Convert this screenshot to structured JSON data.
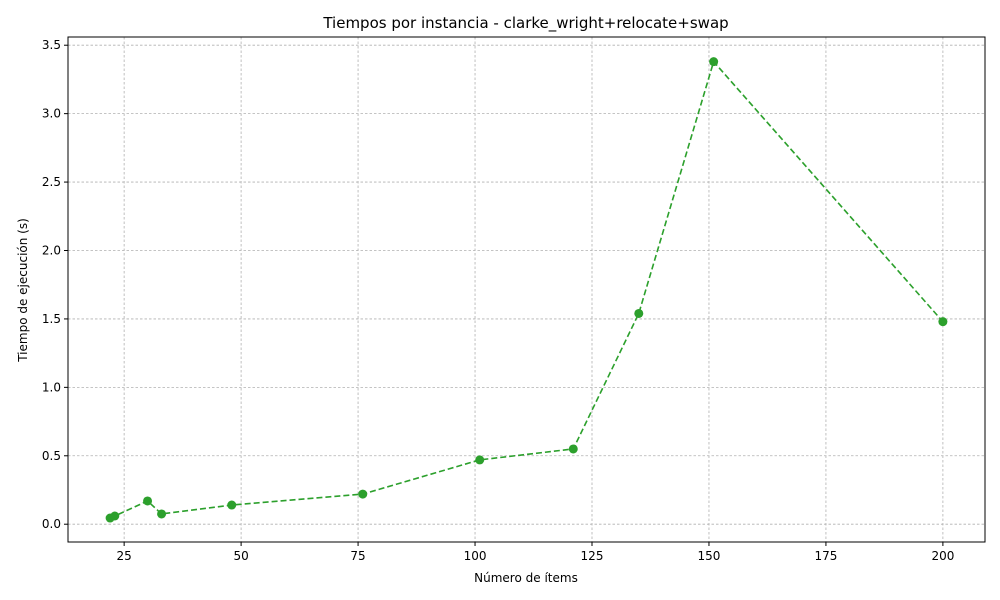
{
  "chart_data": {
    "type": "line",
    "title": "Tiempos por instancia - clarke_wright+relocate+swap",
    "xlabel": "Número de ítems",
    "ylabel": "Tiempo de ejecución (s)",
    "xlim": [
      13,
      209
    ],
    "ylim": [
      -0.13,
      3.56
    ],
    "xticks": [
      25,
      50,
      75,
      100,
      125,
      150,
      175,
      200
    ],
    "yticks": [
      0.0,
      0.5,
      1.0,
      1.5,
      2.0,
      2.5,
      3.0,
      3.5
    ],
    "xtick_labels": [
      "25",
      "50",
      "75",
      "100",
      "125",
      "150",
      "175",
      "200"
    ],
    "ytick_labels": [
      "0.0",
      "0.5",
      "1.0",
      "1.5",
      "2.0",
      "2.5",
      "3.0",
      "3.5"
    ],
    "grid": true,
    "series": [
      {
        "line_style": "dashed",
        "marker": "circle",
        "color": "#2ca02c",
        "x": [
          22,
          23,
          30,
          33,
          48,
          76,
          101,
          121,
          135,
          151,
          200
        ],
        "y": [
          0.045,
          0.06,
          0.17,
          0.075,
          0.14,
          0.22,
          0.47,
          0.55,
          1.54,
          3.38,
          1.48
        ]
      }
    ]
  }
}
